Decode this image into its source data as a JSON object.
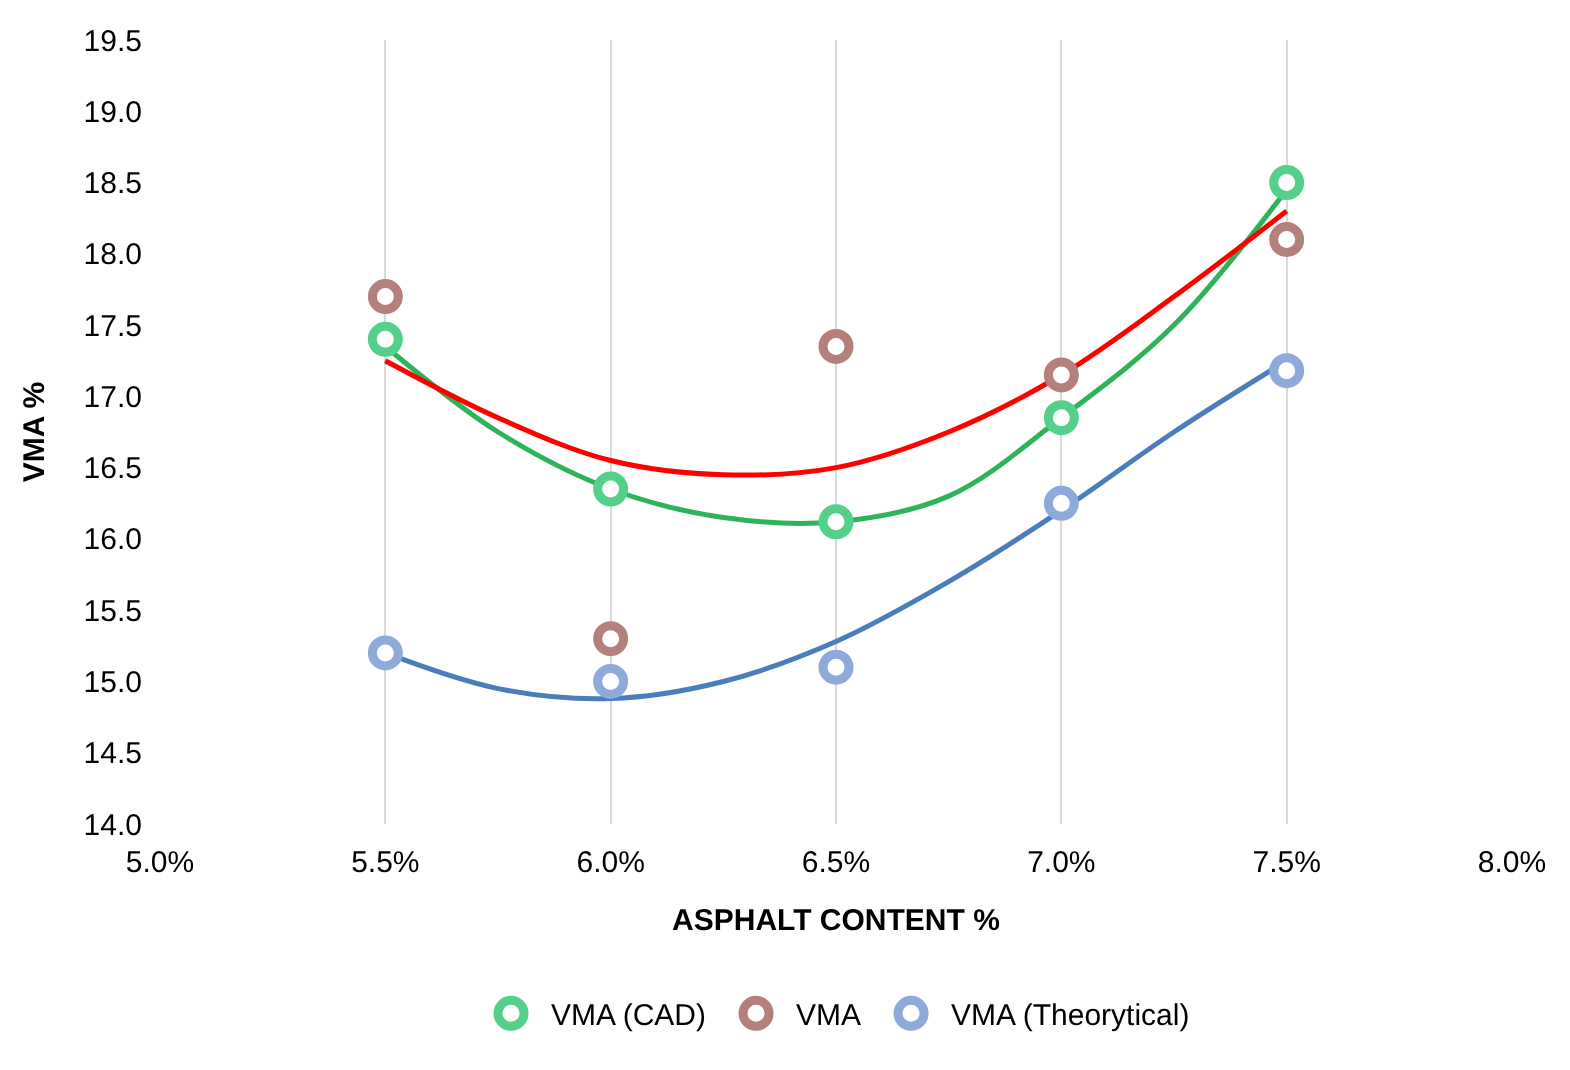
{
  "chart_data": {
    "type": "scatter",
    "xlabel": "ASPHALT CONTENT %",
    "ylabel": "VMA %",
    "x": [
      5.5,
      6.0,
      6.5,
      7.0,
      7.5
    ],
    "xlim": [
      5.0,
      8.0
    ],
    "xticks": [
      {
        "value": 5.0,
        "label": "5.0%"
      },
      {
        "value": 5.5,
        "label": "5.5%"
      },
      {
        "value": 6.0,
        "label": "6.0%"
      },
      {
        "value": 6.5,
        "label": "6.5%"
      },
      {
        "value": 7.0,
        "label": "7.0%"
      },
      {
        "value": 7.5,
        "label": "7.5%"
      },
      {
        "value": 8.0,
        "label": "8.0%"
      }
    ],
    "ylim": [
      14.0,
      19.5
    ],
    "yticks": [
      {
        "value": 14.0,
        "label": "14.0"
      },
      {
        "value": 14.5,
        "label": "14.5"
      },
      {
        "value": 15.0,
        "label": "15.0"
      },
      {
        "value": 15.5,
        "label": "15.5"
      },
      {
        "value": 16.0,
        "label": "16.0"
      },
      {
        "value": 16.5,
        "label": "16.5"
      },
      {
        "value": 17.0,
        "label": "17.0"
      },
      {
        "value": 17.5,
        "label": "17.5"
      },
      {
        "value": 18.0,
        "label": "18.0"
      },
      {
        "value": 18.5,
        "label": "18.5"
      },
      {
        "value": 19.0,
        "label": "19.0"
      },
      {
        "value": 19.5,
        "label": "19.5"
      }
    ],
    "grid": "x",
    "legend": "bottom",
    "marker": "circle",
    "line_style": "solid",
    "series": [
      {
        "type": "line",
        "marker": "none",
        "color": "#2fb35a",
        "x": [
          5.5,
          5.75,
          6.0,
          6.25,
          6.5,
          6.75,
          7.0,
          7.25,
          7.5
        ],
        "values": [
          17.35,
          16.75,
          16.35,
          16.15,
          16.12,
          16.3,
          16.85,
          17.5,
          18.45
        ]
      },
      {
        "type": "line",
        "marker": "none",
        "color": "#ff0000",
        "x": [
          5.5,
          5.75,
          6.0,
          6.25,
          6.5,
          6.75,
          7.0,
          7.25,
          7.5
        ],
        "values": [
          17.25,
          16.85,
          16.55,
          16.45,
          16.5,
          16.75,
          17.15,
          17.7,
          18.3
        ]
      },
      {
        "type": "line",
        "marker": "none",
        "color": "#4a7ebb",
        "x": [
          5.5,
          5.75,
          6.0,
          6.25,
          6.5,
          6.75,
          7.0,
          7.25,
          7.5
        ],
        "values": [
          15.2,
          14.95,
          14.88,
          15.0,
          15.28,
          15.7,
          16.2,
          16.75,
          17.25
        ]
      },
      {
        "name": "VMA (CAD)",
        "color": "#55d08b",
        "values": [
          17.4,
          16.35,
          16.12,
          16.85,
          18.5
        ]
      },
      {
        "name": "VMA",
        "color": "#b5807c",
        "values": [
          17.7,
          15.3,
          17.35,
          17.15,
          18.1
        ]
      },
      {
        "name": "VMA (Theorytical)",
        "color": "#8eaadb",
        "values": [
          15.2,
          15.0,
          15.1,
          16.25,
          17.18
        ]
      }
    ]
  }
}
